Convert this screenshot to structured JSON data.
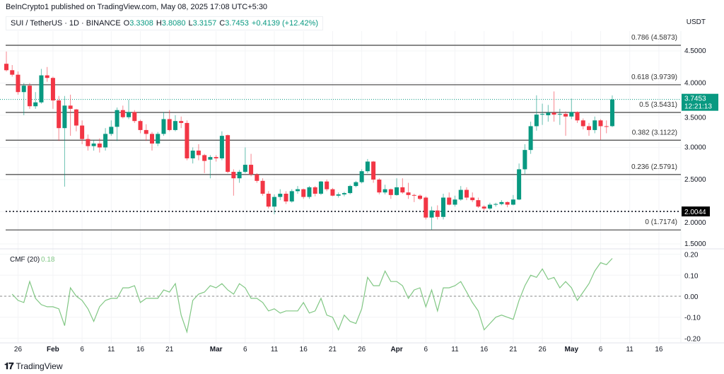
{
  "header": {
    "published": "BeInCrypto1 published on TradingView.com, May 08, 2025 17:08 UTC+5:30",
    "symbol": "SUI / TetherUS · 1D · BINANCE",
    "open_label": "O",
    "open": "3.3308",
    "high_label": "H",
    "high": "3.8080",
    "low_label": "L",
    "low": "3.3157",
    "close_label": "C",
    "close": "3.7453",
    "change": "+0.4139 (+12.42%)",
    "currency": "USDT"
  },
  "colors": {
    "up": "#089981",
    "down": "#f23645",
    "cmf": "#81c784",
    "fib": "#555555"
  },
  "price_axis": {
    "ticks": [
      "4.5000",
      "4.0000",
      "3.5000",
      "3.0000",
      "2.5000",
      "2.0000",
      "1.5000"
    ]
  },
  "last_price": {
    "value": "3.7453",
    "countdown": "12:21:13"
  },
  "marked_price": "2.0044",
  "fib_levels": [
    {
      "ratio": "0.786",
      "price": 4.5873,
      "label": "0.786 (4.5873)"
    },
    {
      "ratio": "0.618",
      "price": 3.9739,
      "label": "0.618 (3.9739)"
    },
    {
      "ratio": "0.5",
      "price": 3.5431,
      "label": "0.5 (3.5431)"
    },
    {
      "ratio": "0.382",
      "price": 3.1122,
      "label": "0.382 (3.1122)"
    },
    {
      "ratio": "0.236",
      "price": 2.5791,
      "label": "0.236 (2.5791)"
    },
    {
      "ratio": "0",
      "price": 1.7174,
      "label": "0 (1.7174)"
    }
  ],
  "time_axis": {
    "labels": [
      {
        "text": "26",
        "day": 2,
        "bold": false
      },
      {
        "text": "Feb",
        "day": 8,
        "bold": true
      },
      {
        "text": "6",
        "day": 13,
        "bold": false
      },
      {
        "text": "11",
        "day": 18,
        "bold": false
      },
      {
        "text": "16",
        "day": 23,
        "bold": false
      },
      {
        "text": "21",
        "day": 28,
        "bold": false
      },
      {
        "text": "Mar",
        "day": 36,
        "bold": true
      },
      {
        "text": "6",
        "day": 41,
        "bold": false
      },
      {
        "text": "11",
        "day": 46,
        "bold": false
      },
      {
        "text": "16",
        "day": 51,
        "bold": false
      },
      {
        "text": "21",
        "day": 56,
        "bold": false
      },
      {
        "text": "26",
        "day": 61,
        "bold": false
      },
      {
        "text": "Apr",
        "day": 67,
        "bold": true
      },
      {
        "text": "6",
        "day": 72,
        "bold": false
      },
      {
        "text": "11",
        "day": 77,
        "bold": false
      },
      {
        "text": "16",
        "day": 82,
        "bold": false
      },
      {
        "text": "21",
        "day": 87,
        "bold": false
      },
      {
        "text": "26",
        "day": 92,
        "bold": false
      },
      {
        "text": "May",
        "day": 97,
        "bold": true
      },
      {
        "text": "6",
        "day": 102,
        "bold": false
      },
      {
        "text": "11",
        "day": 107,
        "bold": false
      },
      {
        "text": "16",
        "day": 112,
        "bold": false
      }
    ]
  },
  "cmf": {
    "title": "CMF (20)",
    "value": "0.18",
    "ticks": [
      "0.20",
      "0.10",
      "0.00",
      "-0.10",
      "-0.20"
    ]
  },
  "chart_data": {
    "type": "candlestick",
    "start_date": "2025-01-24",
    "ohlc": [
      [
        4.3,
        4.49,
        4.18,
        4.2
      ],
      [
        4.2,
        4.28,
        4.1,
        4.13
      ],
      [
        4.13,
        4.18,
        3.82,
        3.86
      ],
      [
        3.86,
        4.0,
        3.5,
        3.96
      ],
      [
        3.96,
        4.0,
        3.6,
        3.64
      ],
      [
        3.64,
        3.86,
        3.6,
        3.7
      ],
      [
        3.7,
        4.22,
        3.68,
        4.12
      ],
      [
        4.12,
        4.25,
        4.02,
        4.08
      ],
      [
        4.08,
        4.1,
        3.6,
        3.73
      ],
      [
        3.73,
        3.8,
        3.1,
        3.3
      ],
      [
        3.3,
        3.8,
        2.39,
        3.65
      ],
      [
        3.65,
        3.82,
        3.18,
        3.6
      ],
      [
        3.59,
        3.6,
        3.25,
        3.34
      ],
      [
        3.34,
        3.42,
        3.05,
        3.13
      ],
      [
        3.13,
        3.2,
        2.95,
        3.02
      ],
      [
        3.02,
        3.12,
        2.95,
        3.06
      ],
      [
        3.06,
        3.14,
        2.92,
        3.0
      ],
      [
        3.0,
        3.3,
        2.95,
        3.21
      ],
      [
        3.21,
        3.42,
        3.18,
        3.32
      ],
      [
        3.32,
        3.62,
        3.1,
        3.58
      ],
      [
        3.58,
        3.65,
        3.45,
        3.47
      ],
      [
        3.47,
        3.74,
        3.44,
        3.55
      ],
      [
        3.55,
        3.58,
        3.38,
        3.41
      ],
      [
        3.41,
        3.43,
        3.22,
        3.27
      ],
      [
        3.27,
        3.36,
        3.1,
        3.21
      ],
      [
        3.21,
        3.24,
        2.95,
        3.06
      ],
      [
        3.06,
        3.24,
        3.02,
        3.21
      ],
      [
        3.21,
        3.55,
        3.18,
        3.44
      ],
      [
        3.44,
        3.58,
        3.25,
        3.27
      ],
      [
        3.27,
        3.5,
        3.25,
        3.41
      ],
      [
        3.41,
        3.48,
        3.3,
        3.38
      ],
      [
        3.38,
        3.42,
        2.8,
        2.83
      ],
      [
        2.83,
        3.0,
        2.75,
        2.95
      ],
      [
        2.95,
        3.05,
        2.8,
        2.88
      ],
      [
        2.88,
        2.9,
        2.6,
        2.79
      ],
      [
        2.81,
        2.88,
        2.52,
        2.85
      ],
      [
        2.85,
        2.88,
        2.78,
        2.83
      ],
      [
        2.83,
        3.25,
        2.8,
        3.18
      ],
      [
        3.19,
        3.2,
        2.6,
        2.62
      ],
      [
        2.62,
        2.66,
        2.25,
        2.52
      ],
      [
        2.52,
        2.65,
        2.45,
        2.62
      ],
      [
        2.62,
        3.0,
        2.6,
        2.73
      ],
      [
        2.73,
        2.9,
        2.55,
        2.58
      ],
      [
        2.58,
        2.6,
        2.45,
        2.48
      ],
      [
        2.48,
        2.52,
        2.25,
        2.28
      ],
      [
        2.28,
        2.32,
        2.05,
        2.08
      ],
      [
        2.08,
        2.27,
        1.96,
        2.23
      ],
      [
        2.23,
        2.35,
        2.18,
        2.28
      ],
      [
        2.28,
        2.32,
        2.12,
        2.16
      ],
      [
        2.16,
        2.35,
        2.14,
        2.32
      ],
      [
        2.32,
        2.4,
        2.28,
        2.35
      ],
      [
        2.35,
        2.36,
        2.2,
        2.23
      ],
      [
        2.23,
        2.4,
        2.2,
        2.38
      ],
      [
        2.38,
        2.4,
        2.24,
        2.28
      ],
      [
        2.28,
        2.48,
        2.26,
        2.47
      ],
      [
        2.47,
        2.5,
        2.32,
        2.35
      ],
      [
        2.35,
        2.37,
        2.24,
        2.25
      ],
      [
        2.25,
        2.3,
        2.22,
        2.27
      ],
      [
        2.27,
        2.31,
        2.24,
        2.29
      ],
      [
        2.29,
        2.42,
        2.27,
        2.4
      ],
      [
        2.4,
        2.48,
        2.38,
        2.46
      ],
      [
        2.46,
        2.66,
        2.44,
        2.63
      ],
      [
        2.63,
        2.82,
        2.6,
        2.78
      ],
      [
        2.78,
        2.79,
        2.45,
        2.5
      ],
      [
        2.5,
        2.52,
        2.27,
        2.3
      ],
      [
        2.3,
        2.42,
        2.27,
        2.35
      ],
      [
        2.35,
        2.36,
        2.2,
        2.26
      ],
      [
        2.26,
        2.52,
        2.25,
        2.38
      ],
      [
        2.38,
        2.52,
        2.28,
        2.3
      ],
      [
        2.3,
        2.45,
        2.2,
        2.26
      ],
      [
        2.26,
        2.28,
        2.15,
        2.25
      ],
      [
        2.25,
        2.27,
        2.18,
        2.2
      ],
      [
        2.22,
        2.24,
        1.88,
        1.91
      ],
      [
        1.91,
        2.08,
        1.72,
        2.02
      ],
      [
        2.02,
        2.1,
        1.88,
        1.92
      ],
      [
        1.92,
        2.28,
        1.88,
        2.22
      ],
      [
        2.22,
        2.3,
        2.1,
        2.11
      ],
      [
        2.11,
        2.25,
        2.08,
        2.19
      ],
      [
        2.19,
        2.4,
        2.17,
        2.34
      ],
      [
        2.34,
        2.38,
        2.18,
        2.22
      ],
      [
        2.22,
        2.3,
        2.15,
        2.18
      ],
      [
        2.18,
        2.22,
        2.06,
        2.08
      ],
      [
        2.08,
        2.1,
        2.02,
        2.05
      ],
      [
        2.05,
        2.14,
        2.03,
        2.11
      ],
      [
        2.11,
        2.14,
        2.08,
        2.12
      ],
      [
        2.12,
        2.18,
        2.1,
        2.15
      ],
      [
        2.15,
        2.16,
        2.07,
        2.11
      ],
      [
        2.11,
        2.26,
        2.1,
        2.19
      ],
      [
        2.19,
        2.75,
        2.18,
        2.66
      ],
      [
        2.66,
        3.05,
        2.58,
        2.96
      ],
      [
        2.96,
        3.4,
        2.9,
        3.33
      ],
      [
        3.33,
        3.81,
        3.26,
        3.51
      ],
      [
        3.51,
        3.68,
        3.35,
        3.52
      ],
      [
        3.5,
        3.66,
        3.4,
        3.54
      ],
      [
        3.54,
        3.87,
        3.4,
        3.51
      ],
      [
        3.52,
        3.6,
        3.35,
        3.52
      ],
      [
        3.52,
        3.56,
        3.18,
        3.48
      ],
      [
        3.48,
        3.76,
        3.44,
        3.55
      ],
      [
        3.55,
        3.56,
        3.38,
        3.42
      ],
      [
        3.42,
        3.45,
        3.28,
        3.33
      ],
      [
        3.33,
        3.38,
        3.18,
        3.27
      ],
      [
        3.27,
        3.48,
        3.22,
        3.42
      ],
      [
        3.42,
        3.44,
        3.12,
        3.33
      ],
      [
        3.33,
        3.42,
        3.22,
        3.32
      ],
      [
        3.3308,
        3.808,
        3.3157,
        3.7453
      ]
    ],
    "cmf_values": [
      0.01,
      -0.02,
      -0.03,
      0.07,
      -0.01,
      -0.04,
      -0.05,
      -0.05,
      -0.06,
      -0.14,
      0.04,
      0.0,
      -0.02,
      -0.06,
      -0.12,
      -0.05,
      -0.02,
      -0.01,
      -0.01,
      0.04,
      0.04,
      0.05,
      -0.03,
      -0.01,
      -0.01,
      -0.01,
      0.03,
      0.02,
      0.06,
      -0.09,
      -0.17,
      -0.02,
      0.01,
      0.02,
      0.05,
      0.04,
      0.06,
      0.03,
      0.01,
      0.06,
      0.04,
      -0.01,
      -0.01,
      -0.03,
      -0.07,
      -0.06,
      -0.08,
      -0.07,
      -0.07,
      -0.07,
      -0.03,
      -0.08,
      -0.07,
      -0.01,
      -0.09,
      -0.1,
      -0.16,
      -0.09,
      -0.12,
      -0.13,
      -0.06,
      0.09,
      0.05,
      0.05,
      0.12,
      0.07,
      0.07,
      0.05,
      -0.01,
      0.03,
      0.04,
      -0.05,
      0.03,
      -0.07,
      0.04,
      0.04,
      0.05,
      0.07,
      0.02,
      -0.03,
      -0.07,
      -0.16,
      -0.13,
      -0.1,
      -0.09,
      -0.1,
      -0.11,
      -0.02,
      0.05,
      0.1,
      0.09,
      0.13,
      0.08,
      0.09,
      0.04,
      0.07,
      0.04,
      -0.02,
      0.02,
      0.06,
      0.12,
      0.16,
      0.15,
      0.18
    ],
    "price_range": [
      1.4,
      4.75
    ],
    "cmf_range": [
      -0.2,
      0.2
    ],
    "grid": true
  },
  "footer": {
    "logo_text": "TradingView",
    "logo_mark": "17"
  }
}
